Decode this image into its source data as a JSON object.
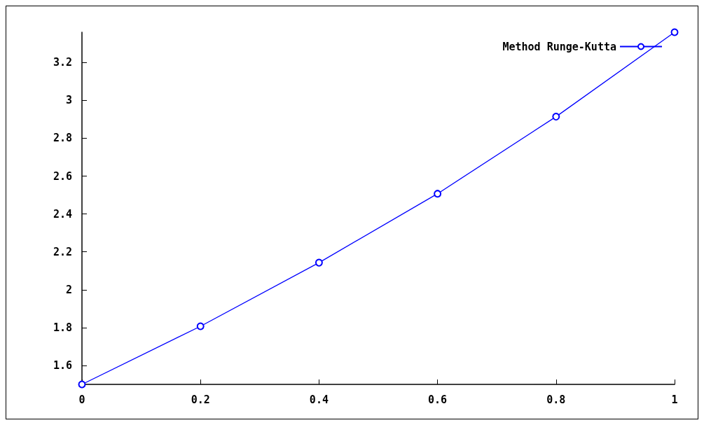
{
  "chart_data": {
    "type": "line",
    "x": [
      0,
      0.2,
      0.4,
      0.6,
      0.8,
      1
    ],
    "series": [
      {
        "name": "Method Runge-Kutta",
        "color": "#0000ff",
        "values": [
          1.5,
          1.807,
          2.143,
          2.507,
          2.914,
          3.36
        ]
      }
    ],
    "xlim": [
      0,
      1
    ],
    "xticks": [
      0,
      0.2,
      0.4,
      0.6,
      0.8,
      1
    ],
    "ylim": [
      1.5,
      3.36
    ],
    "yticks": [
      1.6,
      1.8,
      2,
      2.2,
      2.4,
      2.6,
      2.8,
      3,
      3.2
    ],
    "grid": false,
    "legend": "top right",
    "marker": "circle",
    "line_style": "solid"
  }
}
